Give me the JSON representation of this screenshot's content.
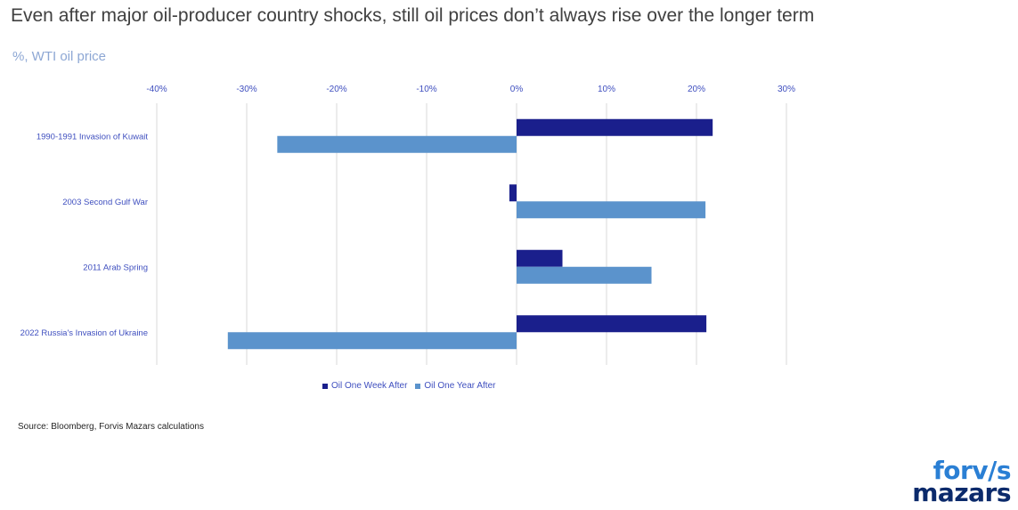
{
  "title": "Even after major oil-producer country shocks, still oil prices don’t always rise over the longer term",
  "subtitle": "%, WTI oil price",
  "source": "Source: Bloomberg, Forvis Mazars calculations",
  "logo": {
    "line1": "forv/s",
    "line2": "mazars"
  },
  "chart_data": {
    "type": "bar",
    "orientation": "horizontal",
    "categories": [
      "1990-1991 Invasion of Kuwait",
      "2003 Second Gulf War",
      "2011 Arab Spring",
      "2022 Russia's Invasion of Ukraine"
    ],
    "series": [
      {
        "name": "Oil One Week After",
        "color": "#1a1f8c",
        "values": [
          21.8,
          -0.8,
          5.1,
          21.1
        ]
      },
      {
        "name": "Oil One Year After",
        "color": "#5b93cc",
        "values": [
          -26.6,
          21.0,
          15.0,
          -32.1
        ]
      }
    ],
    "xlim": [
      -40,
      30
    ],
    "ticks": [
      "-40%",
      "-30%",
      "-20%",
      "-10%",
      "0%",
      "10%",
      "20%",
      "30%"
    ],
    "tick_values": [
      -40,
      -30,
      -20,
      -10,
      0,
      10,
      20,
      30
    ],
    "axis_position": "top",
    "grid": true,
    "legend": "bottom"
  }
}
